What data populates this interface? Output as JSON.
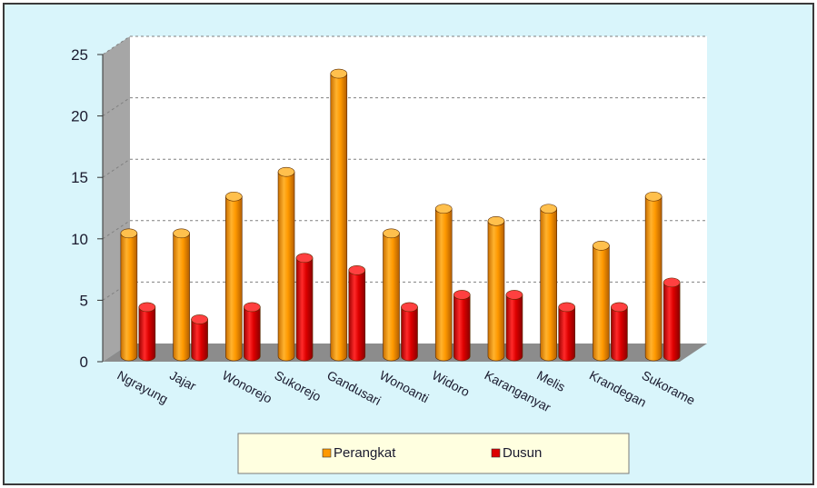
{
  "chart_data": {
    "type": "bar",
    "categories": [
      "Ngrayung",
      "Jajar",
      "Wonorejo",
      "Sukorejo",
      "Gandusari",
      "Wonoanti",
      "Widoro",
      "Karanganyar",
      "Melis",
      "Krandegan",
      "Sukorame"
    ],
    "series": [
      {
        "name": "Perangkat",
        "values": [
          10,
          10,
          13,
          15,
          23,
          10,
          12,
          11,
          12,
          9,
          13
        ],
        "color": "#FF9900"
      },
      {
        "name": "Dusun",
        "values": [
          4,
          3,
          4,
          8,
          7,
          4,
          5,
          5,
          4,
          4,
          6
        ],
        "color": "#DD0000"
      }
    ],
    "yticks": [
      0,
      5,
      10,
      15,
      20,
      25
    ],
    "ylim": [
      0,
      25
    ],
    "title": "",
    "xlabel": "",
    "ylabel": "",
    "grid": true,
    "legend_position": "bottom",
    "style": "3d-cylinder",
    "colors": {
      "background": "#D9F5FB",
      "plot_wall": "#FFFFFF",
      "side_wall": "#A6A6A6",
      "floor": "#8C8C8C",
      "legend_bg": "#FFFFE0"
    }
  }
}
